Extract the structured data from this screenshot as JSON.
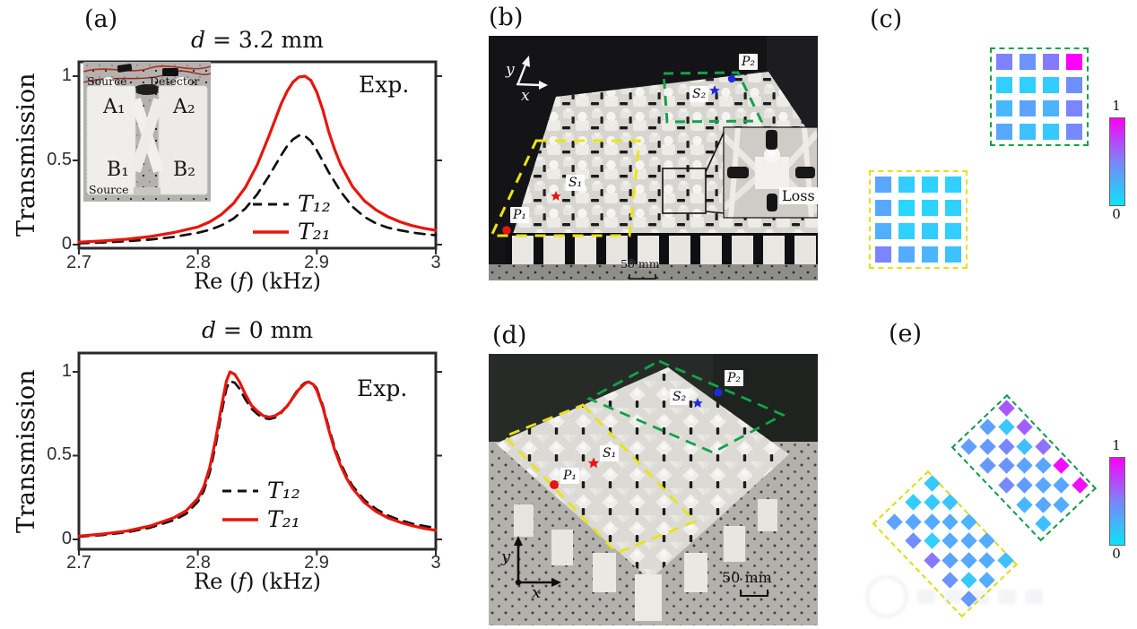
{
  "panel_labels": {
    "a": "(a)",
    "b": "(b)",
    "c": "(c)",
    "d": "(d)",
    "e": "(e)"
  },
  "chart_data": [
    {
      "type": "line",
      "title": {
        "var": "d",
        "rest": " = 3.2 mm"
      },
      "corner_label": "Exp.",
      "ylabel": "Transmission",
      "xlabel": {
        "pre": "Re (",
        "var": "f",
        "post": ") (kHz)"
      },
      "xlim": [
        2.7,
        3.0
      ],
      "ylim": [
        0,
        1
      ],
      "xticks": [
        "2.7",
        "2.8",
        "2.9",
        "3"
      ],
      "yticks": [
        "0",
        "0.5",
        "1"
      ],
      "legend": [
        {
          "label": "T₁₂",
          "color": "#111111",
          "dash": true
        },
        {
          "label": "T₂₁",
          "color": "#e8150c",
          "dash": false
        }
      ],
      "series": [
        {
          "name": "T12",
          "dash": true,
          "color": "#111111",
          "points": [
            [
              2.7,
              0.008
            ],
            [
              2.72,
              0.013
            ],
            [
              2.74,
              0.02
            ],
            [
              2.76,
              0.03
            ],
            [
              2.78,
              0.046
            ],
            [
              2.8,
              0.07
            ],
            [
              2.81,
              0.088
            ],
            [
              2.82,
              0.115
            ],
            [
              2.83,
              0.155
            ],
            [
              2.84,
              0.215
            ],
            [
              2.85,
              0.3
            ],
            [
              2.86,
              0.41
            ],
            [
              2.87,
              0.53
            ],
            [
              2.875,
              0.585
            ],
            [
              2.88,
              0.625
            ],
            [
              2.885,
              0.648
            ],
            [
              2.89,
              0.645
            ],
            [
              2.895,
              0.615
            ],
            [
              2.9,
              0.56
            ],
            [
              2.91,
              0.43
            ],
            [
              2.92,
              0.315
            ],
            [
              2.93,
              0.225
            ],
            [
              2.94,
              0.165
            ],
            [
              2.95,
              0.125
            ],
            [
              2.96,
              0.1
            ],
            [
              2.97,
              0.085
            ],
            [
              2.98,
              0.072
            ],
            [
              2.99,
              0.063
            ],
            [
              3.0,
              0.056
            ]
          ]
        },
        {
          "name": "T21",
          "dash": false,
          "color": "#e8150c",
          "points": [
            [
              2.7,
              0.015
            ],
            [
              2.72,
              0.022
            ],
            [
              2.74,
              0.032
            ],
            [
              2.76,
              0.048
            ],
            [
              2.78,
              0.072
            ],
            [
              2.8,
              0.105
            ],
            [
              2.81,
              0.135
            ],
            [
              2.82,
              0.18
            ],
            [
              2.83,
              0.245
            ],
            [
              2.84,
              0.34
            ],
            [
              2.85,
              0.475
            ],
            [
              2.86,
              0.65
            ],
            [
              2.87,
              0.835
            ],
            [
              2.875,
              0.91
            ],
            [
              2.88,
              0.965
            ],
            [
              2.885,
              0.995
            ],
            [
              2.89,
              1.0
            ],
            [
              2.895,
              0.975
            ],
            [
              2.9,
              0.905
            ],
            [
              2.905,
              0.8
            ],
            [
              2.91,
              0.67
            ],
            [
              2.915,
              0.565
            ],
            [
              2.92,
              0.475
            ],
            [
              2.93,
              0.345
            ],
            [
              2.94,
              0.26
            ],
            [
              2.95,
              0.205
            ],
            [
              2.96,
              0.165
            ],
            [
              2.97,
              0.135
            ],
            [
              2.98,
              0.113
            ],
            [
              2.99,
              0.097
            ],
            [
              3.0,
              0.085
            ]
          ]
        }
      ]
    },
    {
      "type": "line",
      "title": {
        "var": "d",
        "rest": " = 0 mm"
      },
      "corner_label": "Exp.",
      "ylabel": "Transmission",
      "xlabel": {
        "pre": "Re (",
        "var": "f",
        "post": ") (kHz)"
      },
      "xlim": [
        2.7,
        3.0
      ],
      "ylim": [
        0,
        1
      ],
      "xticks": [
        "2.7",
        "2.8",
        "2.9",
        "3"
      ],
      "yticks": [
        "0",
        "0.5",
        "1"
      ],
      "legend": [
        {
          "label": "T₁₂",
          "color": "#111111",
          "dash": true
        },
        {
          "label": "T₂₁",
          "color": "#e8150c",
          "dash": false
        }
      ],
      "series": [
        {
          "name": "T12",
          "dash": true,
          "color": "#111111",
          "points": [
            [
              2.7,
              0.016
            ],
            [
              2.72,
              0.026
            ],
            [
              2.74,
              0.042
            ],
            [
              2.76,
              0.07
            ],
            [
              2.78,
              0.115
            ],
            [
              2.79,
              0.152
            ],
            [
              2.8,
              0.225
            ],
            [
              2.805,
              0.29
            ],
            [
              2.81,
              0.4
            ],
            [
              2.815,
              0.565
            ],
            [
              2.82,
              0.76
            ],
            [
              2.824,
              0.9
            ],
            [
              2.827,
              0.945
            ],
            [
              2.831,
              0.935
            ],
            [
              2.835,
              0.9
            ],
            [
              2.84,
              0.835
            ],
            [
              2.845,
              0.78
            ],
            [
              2.85,
              0.748
            ],
            [
              2.855,
              0.725
            ],
            [
              2.86,
              0.718
            ],
            [
              2.865,
              0.728
            ],
            [
              2.87,
              0.755
            ],
            [
              2.875,
              0.795
            ],
            [
              2.88,
              0.85
            ],
            [
              2.885,
              0.905
            ],
            [
              2.89,
              0.935
            ],
            [
              2.893,
              0.94
            ],
            [
              2.897,
              0.93
            ],
            [
              2.9,
              0.9
            ],
            [
              2.905,
              0.8
            ],
            [
              2.91,
              0.67
            ],
            [
              2.915,
              0.55
            ],
            [
              2.92,
              0.455
            ],
            [
              2.925,
              0.38
            ],
            [
              2.93,
              0.32
            ],
            [
              2.94,
              0.235
            ],
            [
              2.95,
              0.18
            ],
            [
              2.96,
              0.142
            ],
            [
              2.97,
              0.115
            ],
            [
              2.98,
              0.094
            ],
            [
              2.99,
              0.08
            ],
            [
              3.0,
              0.068
            ]
          ]
        },
        {
          "name": "T21",
          "dash": false,
          "color": "#e8150c",
          "points": [
            [
              2.7,
              0.02
            ],
            [
              2.72,
              0.032
            ],
            [
              2.74,
              0.05
            ],
            [
              2.76,
              0.08
            ],
            [
              2.78,
              0.13
            ],
            [
              2.79,
              0.17
            ],
            [
              2.8,
              0.245
            ],
            [
              2.805,
              0.315
            ],
            [
              2.81,
              0.43
            ],
            [
              2.815,
              0.6
            ],
            [
              2.82,
              0.8
            ],
            [
              2.824,
              0.945
            ],
            [
              2.827,
              1.0
            ],
            [
              2.831,
              0.985
            ],
            [
              2.835,
              0.94
            ],
            [
              2.84,
              0.865
            ],
            [
              2.845,
              0.8
            ],
            [
              2.85,
              0.765
            ],
            [
              2.855,
              0.738
            ],
            [
              2.86,
              0.73
            ],
            [
              2.865,
              0.738
            ],
            [
              2.87,
              0.76
            ],
            [
              2.875,
              0.795
            ],
            [
              2.88,
              0.845
            ],
            [
              2.885,
              0.895
            ],
            [
              2.89,
              0.93
            ],
            [
              2.893,
              0.94
            ],
            [
              2.897,
              0.925
            ],
            [
              2.9,
              0.89
            ],
            [
              2.905,
              0.79
            ],
            [
              2.91,
              0.655
            ],
            [
              2.915,
              0.535
            ],
            [
              2.92,
              0.44
            ],
            [
              2.925,
              0.365
            ],
            [
              2.93,
              0.305
            ],
            [
              2.94,
              0.22
            ],
            [
              2.95,
              0.165
            ],
            [
              2.96,
              0.128
            ],
            [
              2.97,
              0.102
            ],
            [
              2.98,
              0.082
            ],
            [
              2.99,
              0.066
            ],
            [
              3.0,
              0.054
            ]
          ]
        }
      ]
    }
  ],
  "heatmaps": {
    "c": {
      "type": "heatmap",
      "colorbar_max": "1",
      "colorbar_min": "0",
      "green_grid": [
        [
          0.49,
          0.42,
          0.52,
          1.0
        ],
        [
          0.19,
          0.19,
          0.2,
          0.44
        ],
        [
          0.28,
          0.36,
          0.3,
          0.48
        ],
        [
          0.34,
          0.24,
          0.21,
          0.46
        ]
      ],
      "yellow_grid": [
        [
          0.35,
          0.2,
          0.18,
          0.18
        ],
        [
          0.34,
          0.16,
          0.17,
          0.18
        ],
        [
          0.31,
          0.18,
          0.2,
          0.19
        ],
        [
          0.48,
          0.33,
          0.29,
          0.24
        ]
      ]
    },
    "e": {
      "type": "heatmap",
      "colorbar_max": "1",
      "colorbar_min": "0",
      "green_sites": [
        [
          0,
          0,
          0.66
        ],
        [
          0,
          2,
          0.37
        ],
        [
          1,
          1,
          0.22
        ],
        [
          2,
          0,
          0.63
        ],
        [
          0,
          4,
          0.38
        ],
        [
          1,
          3,
          0.4
        ],
        [
          2,
          2,
          0.47
        ],
        [
          3,
          1,
          0.25
        ],
        [
          4,
          0,
          0.55
        ],
        [
          2,
          4,
          0.4
        ],
        [
          3,
          3,
          0.42
        ],
        [
          4,
          2,
          0.36
        ],
        [
          5,
          1,
          0.35
        ],
        [
          6,
          0,
          0.95
        ],
        [
          4,
          4,
          0.46
        ],
        [
          5,
          3,
          0.39
        ],
        [
          6,
          2,
          0.35
        ],
        [
          7,
          1,
          0.35
        ],
        [
          8,
          0,
          0.95
        ],
        [
          6,
          4,
          0.28
        ],
        [
          7,
          3,
          0.34
        ],
        [
          8,
          2,
          0.32
        ],
        [
          8,
          4,
          0.25
        ]
      ],
      "yellow_sites": [
        [
          0,
          0,
          0.22
        ],
        [
          0,
          2,
          0.2
        ],
        [
          1,
          1,
          0.21
        ],
        [
          2,
          0,
          0.23
        ],
        [
          0,
          4,
          0.37
        ],
        [
          1,
          3,
          0.35
        ],
        [
          2,
          2,
          0.33
        ],
        [
          3,
          1,
          0.32
        ],
        [
          4,
          0,
          0.3
        ],
        [
          2,
          4,
          0.45
        ],
        [
          3,
          3,
          0.19
        ],
        [
          4,
          2,
          0.33
        ],
        [
          5,
          1,
          0.34
        ],
        [
          6,
          0,
          0.32
        ],
        [
          4,
          4,
          0.53
        ],
        [
          5,
          3,
          0.36
        ],
        [
          6,
          2,
          0.34
        ],
        [
          7,
          1,
          0.33
        ],
        [
          8,
          0,
          0.25
        ],
        [
          6,
          4,
          0.42
        ],
        [
          7,
          3,
          0.22
        ],
        [
          8,
          2,
          0.32
        ],
        [
          8,
          4,
          0.4
        ]
      ]
    }
  },
  "photo_b": {
    "p1": "P₁",
    "p2": "P₂",
    "s1": "S₁",
    "s2": "S₂",
    "loss": "Loss",
    "scale": "50 mm",
    "axis_x": "x",
    "axis_y": "y"
  },
  "photo_d": {
    "p1": "P₁",
    "p2": "P₂",
    "s1": "S₁",
    "s2": "S₂",
    "scale": "50 mm",
    "axis_x": "x",
    "axis_y": "y"
  },
  "inset_a": {
    "source_top": "Source",
    "detector": "Detector",
    "a1": "A₁",
    "a2": "A₂",
    "b1": "B₁",
    "b2": "B₂",
    "source_bottom": "Source"
  }
}
